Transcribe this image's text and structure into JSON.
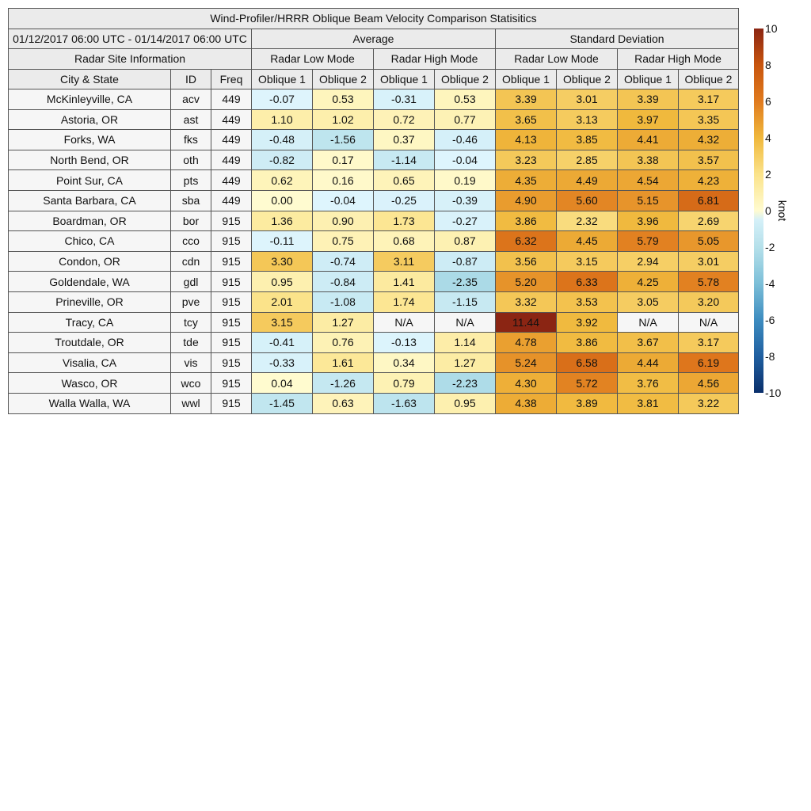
{
  "chart_data": {
    "type": "heatmap",
    "title": "Wind-Profiler/HRRR Oblique Beam Velocity Comparison Statisitics",
    "date_range": "01/12/2017 06:00 UTC - 01/14/2017 06:00 UTC",
    "group_headers": [
      "Average",
      "Standard Deviation"
    ],
    "site_info_header": "Radar Site Information",
    "mode_headers": [
      "Radar Low Mode",
      "Radar High Mode",
      "Radar Low Mode",
      "Radar High Mode"
    ],
    "column_headers": [
      "City & State",
      "ID",
      "Freq",
      "Oblique 1",
      "Oblique 2",
      "Oblique 1",
      "Oblique 2",
      "Oblique 1",
      "Oblique 2",
      "Oblique 1",
      "Oblique 2"
    ],
    "rows": [
      {
        "city": "McKinleyville, CA",
        "id": "acv",
        "freq": "449",
        "values": [
          "-0.07",
          "0.53",
          "-0.31",
          "0.53",
          "3.39",
          "3.01",
          "3.39",
          "3.17"
        ]
      },
      {
        "city": "Astoria, OR",
        "id": "ast",
        "freq": "449",
        "values": [
          "1.10",
          "1.02",
          "0.72",
          "0.77",
          "3.65",
          "3.13",
          "3.97",
          "3.35"
        ]
      },
      {
        "city": "Forks, WA",
        "id": "fks",
        "freq": "449",
        "values": [
          "-0.48",
          "-1.56",
          "0.37",
          "-0.46",
          "4.13",
          "3.85",
          "4.41",
          "4.32"
        ]
      },
      {
        "city": "North Bend, OR",
        "id": "oth",
        "freq": "449",
        "values": [
          "-0.82",
          "0.17",
          "-1.14",
          "-0.04",
          "3.23",
          "2.85",
          "3.38",
          "3.57"
        ]
      },
      {
        "city": "Point Sur, CA",
        "id": "pts",
        "freq": "449",
        "values": [
          "0.62",
          "0.16",
          "0.65",
          "0.19",
          "4.35",
          "4.49",
          "4.54",
          "4.23"
        ]
      },
      {
        "city": "Santa Barbara, CA",
        "id": "sba",
        "freq": "449",
        "values": [
          "0.00",
          "-0.04",
          "-0.25",
          "-0.39",
          "4.90",
          "5.60",
          "5.15",
          "6.81"
        ]
      },
      {
        "city": "Boardman, OR",
        "id": "bor",
        "freq": "915",
        "values": [
          "1.36",
          "0.90",
          "1.73",
          "-0.27",
          "3.86",
          "2.32",
          "3.96",
          "2.69"
        ]
      },
      {
        "city": "Chico, CA",
        "id": "cco",
        "freq": "915",
        "values": [
          "-0.11",
          "0.75",
          "0.68",
          "0.87",
          "6.32",
          "4.45",
          "5.79",
          "5.05"
        ]
      },
      {
        "city": "Condon, OR",
        "id": "cdn",
        "freq": "915",
        "values": [
          "3.30",
          "-0.74",
          "3.11",
          "-0.87",
          "3.56",
          "3.15",
          "2.94",
          "3.01"
        ]
      },
      {
        "city": "Goldendale, WA",
        "id": "gdl",
        "freq": "915",
        "values": [
          "0.95",
          "-0.84",
          "1.41",
          "-2.35",
          "5.20",
          "6.33",
          "4.25",
          "5.78"
        ]
      },
      {
        "city": "Prineville, OR",
        "id": "pve",
        "freq": "915",
        "values": [
          "2.01",
          "-1.08",
          "1.74",
          "-1.15",
          "3.32",
          "3.53",
          "3.05",
          "3.20"
        ]
      },
      {
        "city": "Tracy, CA",
        "id": "tcy",
        "freq": "915",
        "values": [
          "3.15",
          "1.27",
          "N/A",
          "N/A",
          "11.44",
          "3.92",
          "N/A",
          "N/A"
        ]
      },
      {
        "city": "Troutdale, OR",
        "id": "tde",
        "freq": "915",
        "values": [
          "-0.41",
          "0.76",
          "-0.13",
          "1.14",
          "4.78",
          "3.86",
          "3.67",
          "3.17"
        ]
      },
      {
        "city": "Visalia, CA",
        "id": "vis",
        "freq": "915",
        "values": [
          "-0.33",
          "1.61",
          "0.34",
          "1.27",
          "5.24",
          "6.58",
          "4.44",
          "6.19"
        ]
      },
      {
        "city": "Wasco, OR",
        "id": "wco",
        "freq": "915",
        "values": [
          "0.04",
          "-1.26",
          "0.79",
          "-2.23",
          "4.30",
          "5.72",
          "3.76",
          "4.56"
        ]
      },
      {
        "city": "Walla Walla, WA",
        "id": "wwl",
        "freq": "915",
        "values": [
          "-1.45",
          "0.63",
          "-1.63",
          "0.95",
          "4.38",
          "3.89",
          "3.81",
          "3.22"
        ]
      }
    ],
    "colorbar": {
      "label": "knot",
      "range": [
        -10,
        10
      ],
      "ticks": [
        "10",
        "8",
        "6",
        "4",
        "2",
        "0",
        "-2",
        "-4",
        "-6",
        "-8",
        "-10"
      ],
      "colormap": "diverging blue-white-yellow-orange-red"
    },
    "na_color": "#f6f6f6"
  }
}
